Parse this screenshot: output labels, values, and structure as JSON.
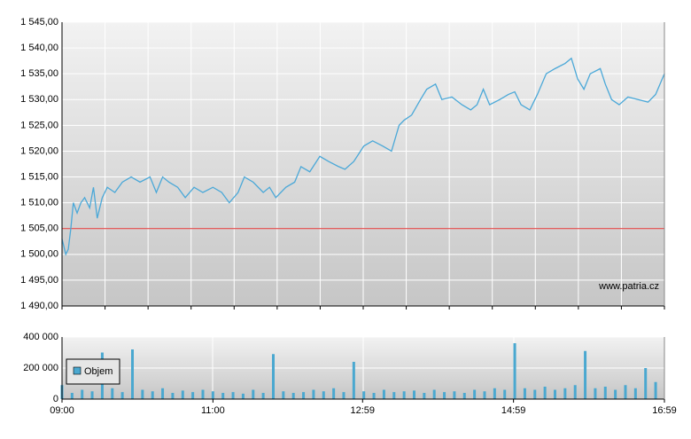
{
  "chart_data": [
    {
      "type": "line",
      "color": "#4aa8d8",
      "x": [
        0,
        3,
        5,
        7,
        9,
        12,
        15,
        18,
        22,
        25,
        28,
        32,
        36,
        42,
        48,
        55,
        62,
        70,
        75,
        80,
        85,
        92,
        98,
        105,
        112,
        120,
        127,
        133,
        140,
        145,
        152,
        160,
        165,
        170,
        178,
        185,
        190,
        197,
        205,
        212,
        220,
        225,
        232,
        240,
        247,
        255,
        262,
        268,
        272,
        278,
        285,
        290,
        297,
        302,
        310,
        318,
        325,
        330,
        335,
        340,
        348,
        355,
        360,
        365,
        372,
        378,
        385,
        392,
        400,
        405,
        410,
        415,
        420,
        428,
        432,
        437,
        443,
        450,
        458,
        466,
        472,
        479
      ],
      "values": [
        1503,
        1500,
        1501,
        1505,
        1510,
        1508,
        1510,
        1511,
        1509,
        1513,
        1507,
        1511,
        1513,
        1512,
        1514,
        1515,
        1514,
        1515,
        1512,
        1515,
        1514,
        1513,
        1511,
        1513,
        1512,
        1513,
        1512,
        1510,
        1512,
        1515,
        1514,
        1512,
        1513,
        1511,
        1513,
        1514,
        1517,
        1516,
        1519,
        1518,
        1517,
        1516.5,
        1518,
        1521,
        1522,
        1521,
        1520,
        1525,
        1526,
        1527,
        1530,
        1532,
        1533,
        1530,
        1530.5,
        1529,
        1528,
        1529,
        1532,
        1529,
        1530,
        1531,
        1531.5,
        1529,
        1528,
        1531,
        1535,
        1536,
        1537,
        1538,
        1534,
        1532,
        1535,
        1536,
        1533,
        1530,
        1529,
        1530.5,
        1530,
        1529.5,
        1531,
        1535
      ],
      "reference": 1505,
      "reference_color": "#e03030",
      "xlim": [
        0,
        479
      ],
      "ylim": [
        1490,
        1545
      ],
      "yticks": [
        {
          "value": 1490,
          "label": "1 490,00"
        },
        {
          "value": 1495,
          "label": "1 495,00"
        },
        {
          "value": 1500,
          "label": "1 500,00"
        },
        {
          "value": 1505,
          "label": "1 505,00"
        },
        {
          "value": 1510,
          "label": "1 510,00"
        },
        {
          "value": 1515,
          "label": "1 515,00"
        },
        {
          "value": 1520,
          "label": "1 520,00"
        },
        {
          "value": 1525,
          "label": "1 525,00"
        },
        {
          "value": 1530,
          "label": "1 530,00"
        },
        {
          "value": 1535,
          "label": "1 535,00"
        },
        {
          "value": 1540,
          "label": "1 540,00"
        },
        {
          "value": 1545,
          "label": "1 545,00"
        }
      ],
      "grid": true,
      "watermark": "www.patria.cz"
    },
    {
      "type": "bar",
      "x": [
        0,
        8,
        16,
        24,
        32,
        40,
        48,
        56,
        64,
        72,
        80,
        88,
        96,
        104,
        112,
        120,
        128,
        136,
        144,
        152,
        160,
        168,
        176,
        184,
        192,
        200,
        208,
        216,
        224,
        232,
        240,
        248,
        256,
        264,
        272,
        280,
        288,
        296,
        304,
        312,
        320,
        328,
        336,
        344,
        352,
        360,
        368,
        376,
        384,
        392,
        400,
        408,
        416,
        424,
        432,
        440,
        448,
        456,
        464,
        472
      ],
      "series": [
        {
          "name": "Objem",
          "color": "#4aa8d0",
          "values": [
            90000,
            40000,
            60000,
            50000,
            300000,
            70000,
            45000,
            320000,
            60000,
            50000,
            70000,
            40000,
            55000,
            45000,
            60000,
            50000,
            40000,
            45000,
            35000,
            60000,
            40000,
            290000,
            50000,
            40000,
            45000,
            60000,
            50000,
            70000,
            45000,
            240000,
            50000,
            40000,
            60000,
            45000,
            50000,
            55000,
            40000,
            60000,
            45000,
            50000,
            40000,
            60000,
            50000,
            70000,
            60000,
            360000,
            70000,
            60000,
            80000,
            60000,
            70000,
            90000,
            310000,
            70000,
            80000,
            60000,
            90000,
            70000,
            200000,
            110000
          ]
        }
      ],
      "xlim": [
        0,
        479
      ],
      "ylim": [
        0,
        400000
      ],
      "yticks": [
        0,
        {
          "value": 200000,
          "label": "200 000"
        },
        {
          "value": 400000,
          "label": "400 000"
        }
      ],
      "xticks": [
        {
          "value": 0,
          "label": "09:00"
        },
        {
          "value": 120,
          "label": "11:00"
        },
        {
          "value": 239,
          "label": "12:59"
        },
        {
          "value": 359,
          "label": "14:59"
        },
        {
          "value": 479,
          "label": "16:59"
        }
      ],
      "grid": true
    }
  ]
}
